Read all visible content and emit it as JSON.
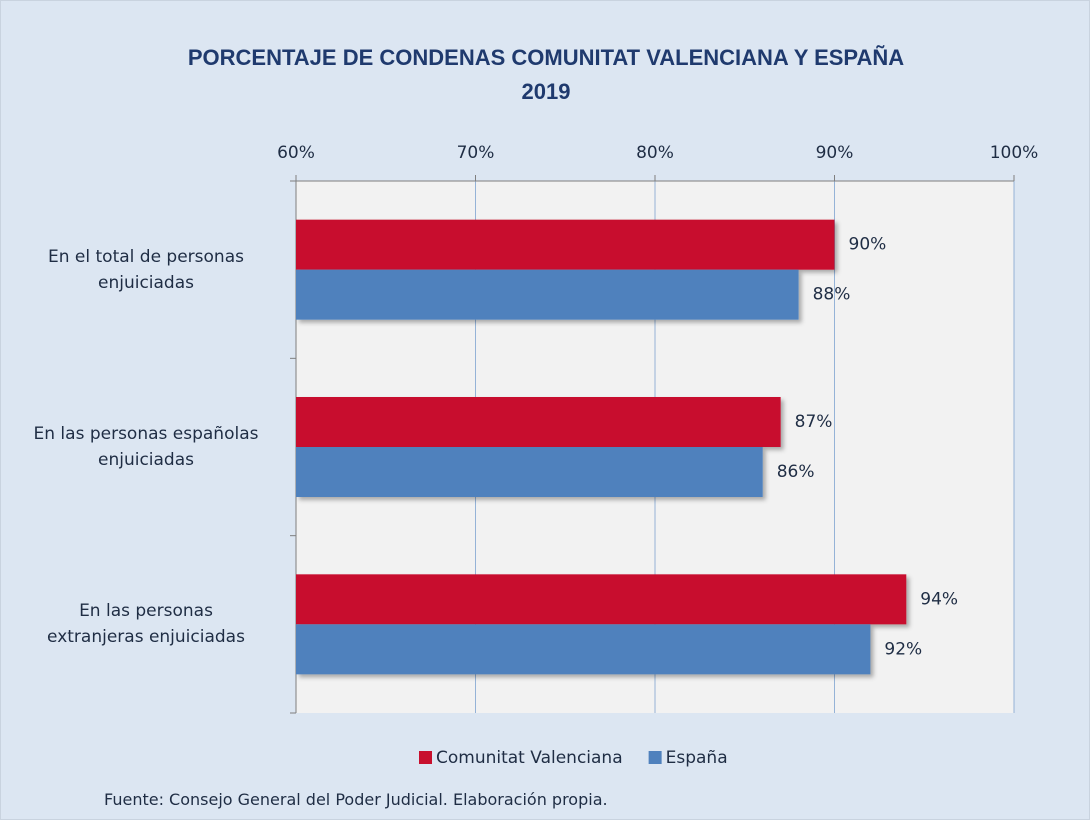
{
  "chart_data": {
    "type": "barh",
    "title": "PORCENTAJE DE CONDENAS COMUNITAT VALENCIANA Y ESPAÑA\n2019",
    "categories": [
      "En el total de personas\nenjuiciadas",
      "En las personas españolas\nenjuiciadas",
      "En las personas\nextranjeras enjuiciadas"
    ],
    "series": [
      {
        "name": "Comunitat Valenciana",
        "color": "#c8102e",
        "values": [
          90,
          87,
          94
        ],
        "value_labels": [
          "90%",
          "87%",
          "94%"
        ]
      },
      {
        "name": "España",
        "color": "#4f81bd",
        "values": [
          88,
          86,
          92
        ],
        "value_labels": [
          "88%",
          "86%",
          "92%"
        ]
      }
    ],
    "xlim": [
      60,
      100
    ],
    "xticks": [
      {
        "value": 60,
        "label": "60%"
      },
      {
        "value": 70,
        "label": "70%"
      },
      {
        "value": 80,
        "label": "80%"
      },
      {
        "value": 90,
        "label": "90%"
      },
      {
        "value": 100,
        "label": "100%"
      }
    ],
    "grid": true,
    "legend": "bottom",
    "source": "Fuente: Consejo General del Poder Judicial. Elaboración propia."
  }
}
